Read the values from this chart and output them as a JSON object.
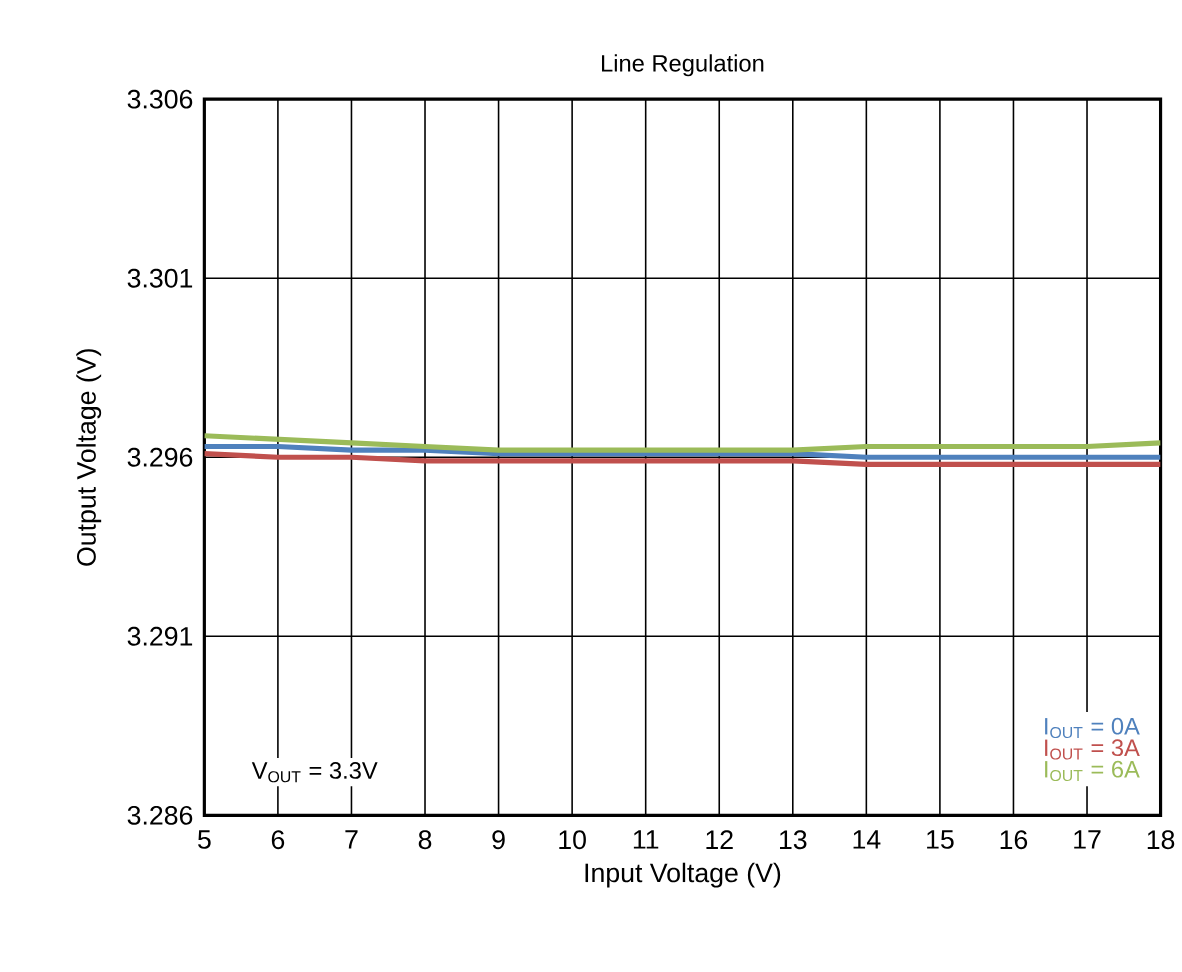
{
  "chart_data": {
    "type": "line",
    "title": "Line Regulation",
    "xlabel": "Input Voltage (V)",
    "ylabel": "Output Voltage (V)",
    "xlim": [
      5,
      18
    ],
    "xticks": [
      5,
      6,
      7,
      8,
      9,
      10,
      11,
      12,
      13,
      14,
      15,
      16,
      17,
      18
    ],
    "ylim": [
      3.286,
      3.306
    ],
    "yticks": [
      3.286,
      3.291,
      3.296,
      3.301,
      3.306
    ],
    "grid": true,
    "legend": "bottom right",
    "marker": "none",
    "line_style": "solid",
    "annotations": [
      "V$_{OUT}$ = 3.3V"
    ],
    "series": [
      {
        "name": "I$_{OUT}$ = 0A",
        "color": "#4f81bd",
        "x": [
          5,
          6,
          7,
          8,
          9,
          10,
          11,
          12,
          13,
          14,
          15,
          16,
          17,
          18
        ],
        "values": [
          3.2963,
          3.2963,
          3.2962,
          3.2962,
          3.2961,
          3.2961,
          3.2961,
          3.2961,
          3.2961,
          3.296,
          3.296,
          3.296,
          3.296,
          3.296
        ]
      },
      {
        "name": "I$_{OUT}$ = 3A",
        "color": "#c0504d",
        "x": [
          5,
          6,
          7,
          8,
          9,
          10,
          11,
          12,
          13,
          14,
          15,
          16,
          17,
          18
        ],
        "values": [
          3.2961,
          3.296,
          3.296,
          3.2959,
          3.2959,
          3.2959,
          3.2959,
          3.2959,
          3.2959,
          3.2958,
          3.2958,
          3.2958,
          3.2958,
          3.2958
        ]
      },
      {
        "name": "I$_{OUT}$ = 6A",
        "color": "#9bbb59",
        "x": [
          5,
          6,
          7,
          8,
          9,
          10,
          11,
          12,
          13,
          14,
          15,
          16,
          17,
          18
        ],
        "values": [
          3.2966,
          3.2965,
          3.2964,
          3.2963,
          3.2962,
          3.2962,
          3.2962,
          3.2962,
          3.2962,
          3.2963,
          3.2963,
          3.2963,
          3.2963,
          3.2964
        ]
      }
    ]
  }
}
